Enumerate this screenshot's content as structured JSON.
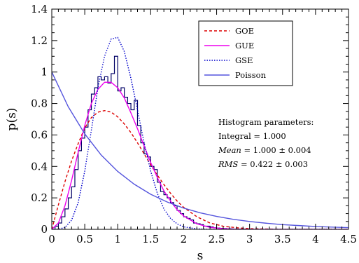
{
  "chart_data": {
    "type": "line",
    "xlabel": "s",
    "ylabel": "p(s)",
    "xlim": [
      0,
      4.5
    ],
    "ylim": [
      0,
      1.4
    ],
    "grid": false,
    "legend_position": "top-right",
    "x_ticks": [
      0,
      0.5,
      1,
      1.5,
      2,
      2.5,
      3,
      3.5,
      4,
      4.5
    ],
    "x_tick_labels": [
      "0",
      "0.5",
      "1",
      "1.5",
      "2",
      "2.5",
      "3",
      "3.5",
      "4",
      "4.5"
    ],
    "y_ticks": [
      0,
      0.2,
      0.4,
      0.6,
      0.8,
      1,
      1.2,
      1.4
    ],
    "y_tick_labels": [
      "0",
      "0.2",
      "0.4",
      "0.6",
      "0.8",
      "1",
      "1.2",
      "1.4"
    ],
    "series": [
      {
        "name": "GOE",
        "color": "#dd0000",
        "dash": "dashed",
        "x": [
          0,
          0.1,
          0.2,
          0.3,
          0.4,
          0.5,
          0.6,
          0.7,
          0.8,
          0.9,
          1.0,
          1.1,
          1.2,
          1.3,
          1.4,
          1.5,
          1.6,
          1.7,
          1.8,
          1.9,
          2.0,
          2.2,
          2.4,
          2.6,
          2.8,
          3.0,
          3.5,
          4.0,
          4.5
        ],
        "y": [
          0,
          0.155,
          0.303,
          0.435,
          0.545,
          0.645,
          0.71,
          0.745,
          0.755,
          0.745,
          0.715,
          0.67,
          0.615,
          0.55,
          0.48,
          0.41,
          0.345,
          0.285,
          0.23,
          0.18,
          0.14,
          0.08,
          0.04,
          0.02,
          0.01,
          0.004,
          0.0005,
          0.0,
          0.0
        ]
      },
      {
        "name": "GUE",
        "color": "#ee00ee",
        "dash": "solid",
        "x": [
          0,
          0.1,
          0.2,
          0.3,
          0.4,
          0.5,
          0.6,
          0.7,
          0.8,
          0.9,
          1.0,
          1.1,
          1.2,
          1.3,
          1.4,
          1.5,
          1.6,
          1.7,
          1.8,
          1.9,
          2.0,
          2.2,
          2.4,
          2.6,
          2.8,
          3.0,
          3.5,
          4.0,
          4.5
        ],
        "y": [
          0,
          0.04,
          0.15,
          0.31,
          0.49,
          0.66,
          0.8,
          0.89,
          0.935,
          0.935,
          0.9,
          0.835,
          0.74,
          0.64,
          0.53,
          0.425,
          0.33,
          0.245,
          0.18,
          0.125,
          0.085,
          0.035,
          0.012,
          0.004,
          0.001,
          0.0,
          0.0,
          0.0,
          0.0
        ]
      },
      {
        "name": "GSE",
        "color": "#0000cc",
        "dash": "dotted",
        "x": [
          0,
          0.1,
          0.2,
          0.3,
          0.4,
          0.5,
          0.6,
          0.7,
          0.8,
          0.9,
          1.0,
          1.1,
          1.2,
          1.3,
          1.4,
          1.5,
          1.6,
          1.7,
          1.8,
          1.9,
          2.0,
          2.2,
          2.4,
          2.6,
          2.8,
          3.0,
          3.5,
          4.0,
          4.5
        ],
        "y": [
          0,
          0.001,
          0.012,
          0.058,
          0.17,
          0.37,
          0.63,
          0.9,
          1.1,
          1.21,
          1.22,
          1.13,
          0.96,
          0.76,
          0.55,
          0.37,
          0.23,
          0.13,
          0.07,
          0.035,
          0.016,
          0.003,
          0.0,
          0.0,
          0.0,
          0.0,
          0.0,
          0.0,
          0.0
        ]
      },
      {
        "name": "Poisson",
        "color": "#5555dd",
        "dash": "solid",
        "x": [
          0,
          0.25,
          0.5,
          0.75,
          1.0,
          1.25,
          1.5,
          1.75,
          2.0,
          2.25,
          2.5,
          2.75,
          3.0,
          3.25,
          3.5,
          3.75,
          4.0,
          4.25,
          4.5
        ],
        "y": [
          1.0,
          0.779,
          0.607,
          0.472,
          0.368,
          0.287,
          0.223,
          0.174,
          0.135,
          0.105,
          0.082,
          0.064,
          0.05,
          0.039,
          0.03,
          0.024,
          0.018,
          0.014,
          0.011
        ]
      }
    ],
    "histogram": {
      "color": "#000066",
      "bin_width": 0.05,
      "bin_start": 0,
      "values": [
        0,
        0.02,
        0.04,
        0.08,
        0.13,
        0.2,
        0.27,
        0.38,
        0.5,
        0.58,
        0.65,
        0.76,
        0.86,
        0.9,
        0.97,
        0.95,
        0.97,
        0.93,
        0.99,
        1.1,
        0.88,
        0.9,
        0.84,
        0.8,
        0.76,
        0.82,
        0.66,
        0.55,
        0.48,
        0.46,
        0.4,
        0.38,
        0.3,
        0.24,
        0.22,
        0.2,
        0.17,
        0.15,
        0.12,
        0.1,
        0.08,
        0.07,
        0.06,
        0.04,
        0.035,
        0.03,
        0.02,
        0.02,
        0.015,
        0.01,
        0.008,
        0.006,
        0.005,
        0.004,
        0.003,
        0.002,
        0.002,
        0.001,
        0.001,
        0.001,
        0.0
      ]
    },
    "stats_box": {
      "title": "Histogram parameters:",
      "integral": "Integral = 1.000",
      "mean_label": "Mean",
      "mean_value": " = 1.000 ± 0.004",
      "rms_label": "RMS",
      "rms_value": " = 0.422 ± 0.003"
    }
  }
}
